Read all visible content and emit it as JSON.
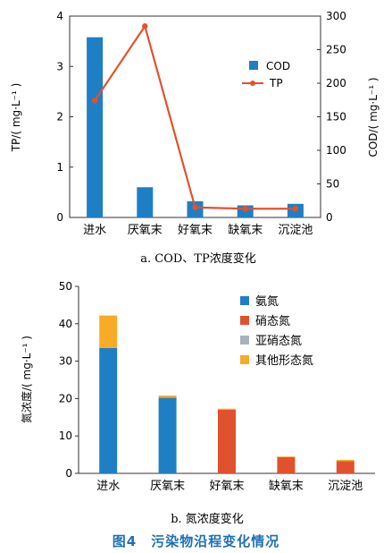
{
  "chart_data": [
    {
      "id": "a",
      "type": "bar+line",
      "caption": "a. COD、TP浓度变化",
      "categories": [
        "进水",
        "厌氧末",
        "好氧末",
        "缺氧末",
        "沉淀池"
      ],
      "left_axis": {
        "label": "TP/( mg·L⁻¹ )",
        "ylim": [
          0,
          4
        ],
        "ticks": [
          "0",
          "1",
          "2",
          "3",
          "4"
        ]
      },
      "right_axis": {
        "label": "COD/( mg·L⁻¹ )",
        "ylim": [
          0,
          300
        ],
        "ticks": [
          "0",
          "50",
          "100",
          "150",
          "200",
          "250",
          "300"
        ]
      },
      "series": [
        {
          "name": "COD",
          "kind": "bar",
          "axis": "left",
          "values": [
            3.58,
            0.6,
            0.32,
            0.24,
            0.27
          ],
          "color": "#1f7fc4"
        },
        {
          "name": "TP",
          "kind": "line",
          "axis": "right",
          "values": [
            174,
            285,
            15,
            13,
            13
          ],
          "color": "#e0522d"
        }
      ],
      "legend": "upper-right",
      "grid": false
    },
    {
      "id": "b",
      "type": "stacked-bar",
      "caption": "b. 氮浓度变化",
      "categories": [
        "进水",
        "厌氧末",
        "好氧末",
        "缺氧末",
        "沉淀池"
      ],
      "y_axis": {
        "label": "氮浓度/( mg·L⁻¹ )",
        "ylim": [
          0,
          50
        ],
        "ticks": [
          "0",
          "10",
          "20",
          "30",
          "40",
          "50"
        ]
      },
      "series": [
        {
          "name": "氨氮",
          "values": [
            33.5,
            20.2,
            0,
            0,
            0
          ],
          "color": "#1f7fc4"
        },
        {
          "name": "硝态氮",
          "values": [
            0,
            0,
            17.0,
            4.3,
            3.3
          ],
          "color": "#e0522d"
        },
        {
          "name": "亚硝态氮",
          "values": [
            0,
            0,
            0,
            0,
            0
          ],
          "color": "#a8b2bd"
        },
        {
          "name": "其他形态氮",
          "values": [
            8.7,
            0.6,
            0.3,
            0.2,
            0.3
          ],
          "color": "#f7ab27"
        }
      ],
      "legend": "upper-right",
      "grid": false
    }
  ],
  "figure_title": "图4　污染物沿程变化情况"
}
